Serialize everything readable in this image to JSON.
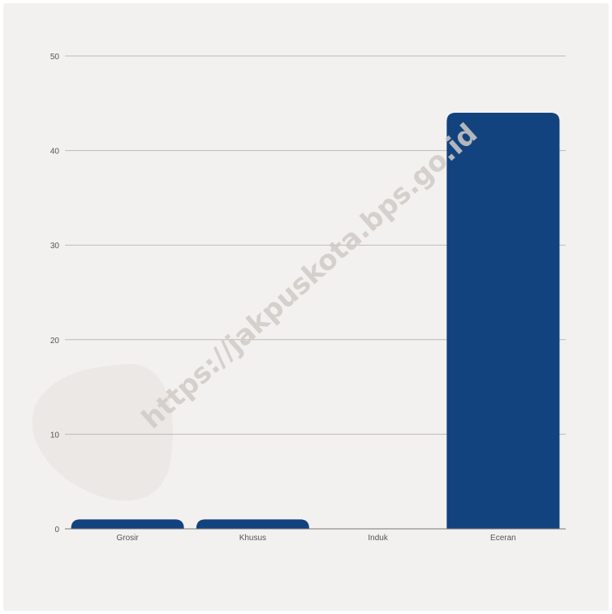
{
  "chart_data": {
    "type": "bar",
    "categories": [
      "Grosir",
      "Khusus",
      "Induk",
      "Eceran"
    ],
    "values": [
      1,
      1,
      0,
      44
    ],
    "title": "",
    "xlabel": "",
    "ylabel": "",
    "ylim": [
      0,
      50
    ],
    "yticks": [
      "0",
      "10",
      "20",
      "30",
      "40",
      "50"
    ],
    "grid": true,
    "bar_color": "#12437f"
  },
  "watermark": "https://jakpuskota.bps.go.id"
}
